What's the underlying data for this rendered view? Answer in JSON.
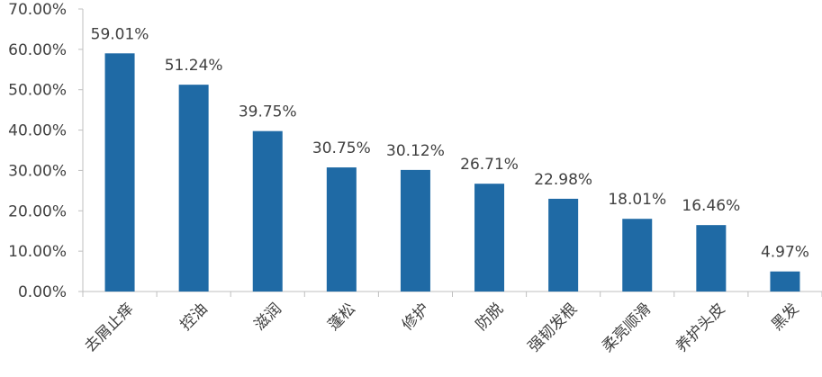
{
  "chart_data": {
    "type": "bar",
    "categories": [
      "去屑止痒",
      "控油",
      "滋润",
      "蓬松",
      "修护",
      "防脱",
      "强韧发根",
      "柔亮顺滑",
      "养护头皮",
      "黑发"
    ],
    "values": [
      59.01,
      51.24,
      39.75,
      30.75,
      30.12,
      26.71,
      22.98,
      18.01,
      16.46,
      4.97
    ],
    "data_labels": [
      "59.01%",
      "51.24%",
      "39.75%",
      "30.75%",
      "30.12%",
      "26.71%",
      "22.98%",
      "18.01%",
      "16.46%",
      "4.97%"
    ],
    "yticks": [
      "0.00%",
      "10.00%",
      "20.00%",
      "30.00%",
      "40.00%",
      "50.00%",
      "60.00%",
      "70.00%"
    ],
    "ylim": [
      0,
      70
    ],
    "grid": false,
    "legend": "none",
    "title": "",
    "xlabel": "",
    "ylabel": "",
    "bar_color": "#1f6aa5",
    "axis_color": "#bfbfbf",
    "text_color": "#404040"
  }
}
